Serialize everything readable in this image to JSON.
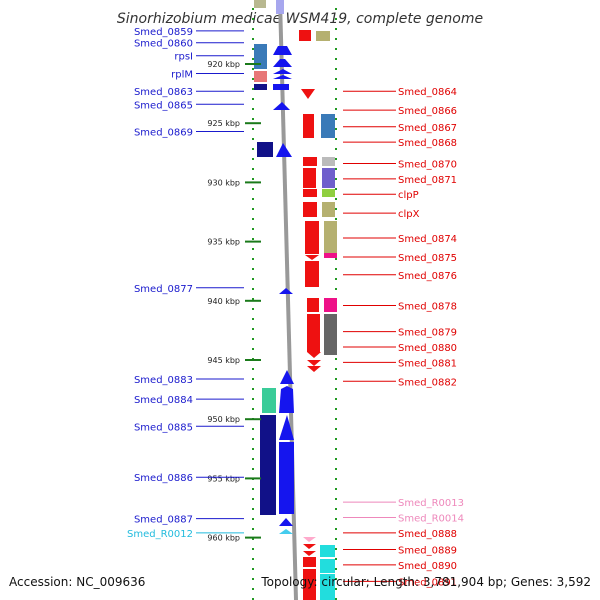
{
  "title": "Sinorhizobium medicae WSM419, complete genome",
  "footer": {
    "accession": "Accession: NC_009636",
    "summary": "Topology: circular; Length: 3,781,904 bp; Genes: 3,592"
  },
  "scale": {
    "unit": "kbp",
    "range_kbp": [
      916,
      965
    ],
    "ticks_kbp": [
      920,
      925,
      930,
      935,
      940,
      945,
      950,
      955,
      960
    ]
  },
  "colors": {
    "backbone": "#999999",
    "left_label": "#1a1acd",
    "right_label": "#e00000",
    "rna_label_cyan": "#22bbdd",
    "rna_label_pink": "#ee88bb",
    "dots": "#229922",
    "ticks": "#1a7a1a"
  },
  "left_genes": [
    {
      "label": "Smed_0859",
      "kbp": 917.2,
      "color": "#1a1acd"
    },
    {
      "label": "Smed_0860",
      "kbp": 918.2,
      "color": "#1a1acd"
    },
    {
      "label": "rpsI",
      "kbp": 919.3,
      "color": "#1a1acd"
    },
    {
      "label": "rplM",
      "kbp": 920.8,
      "color": "#1a1acd"
    },
    {
      "label": "Smed_0863",
      "kbp": 922.3,
      "color": "#1a1acd"
    },
    {
      "label": "Smed_0865",
      "kbp": 923.4,
      "color": "#1a1acd"
    },
    {
      "label": "Smed_0869",
      "kbp": 925.7,
      "color": "#1a1acd"
    },
    {
      "label": "Smed_0877",
      "kbp": 938.9,
      "color": "#1a1acd"
    },
    {
      "label": "Smed_0883",
      "kbp": 946.6,
      "color": "#1a1acd"
    },
    {
      "label": "Smed_0884",
      "kbp": 948.3,
      "color": "#1a1acd"
    },
    {
      "label": "Smed_0885",
      "kbp": 950.6,
      "color": "#1a1acd"
    },
    {
      "label": "Smed_0886",
      "kbp": 954.9,
      "color": "#1a1acd"
    },
    {
      "label": "Smed_0887",
      "kbp": 958.4,
      "color": "#1a1acd"
    },
    {
      "label": "Smed_R0012",
      "kbp": 959.6,
      "color": "#22bbdd"
    }
  ],
  "right_genes": [
    {
      "label": "Smed_0864",
      "kbp": 922.3,
      "color": "#e00000"
    },
    {
      "label": "Smed_0866",
      "kbp": 923.9,
      "color": "#e00000"
    },
    {
      "label": "Smed_0867",
      "kbp": 925.3,
      "color": "#e00000"
    },
    {
      "label": "Smed_0868",
      "kbp": 926.6,
      "color": "#e00000"
    },
    {
      "label": "Smed_0870",
      "kbp": 928.4,
      "color": "#e00000"
    },
    {
      "label": "Smed_0871",
      "kbp": 929.7,
      "color": "#e00000"
    },
    {
      "label": "clpP",
      "kbp": 931.0,
      "color": "#e00000"
    },
    {
      "label": "clpX",
      "kbp": 932.6,
      "color": "#e00000"
    },
    {
      "label": "Smed_0874",
      "kbp": 934.7,
      "color": "#e00000"
    },
    {
      "label": "Smed_0875",
      "kbp": 936.3,
      "color": "#e00000"
    },
    {
      "label": "Smed_0876",
      "kbp": 937.8,
      "color": "#e00000"
    },
    {
      "label": "Smed_0878",
      "kbp": 940.4,
      "color": "#e00000"
    },
    {
      "label": "Smed_0879",
      "kbp": 942.6,
      "color": "#e00000"
    },
    {
      "label": "Smed_0880",
      "kbp": 943.9,
      "color": "#e00000"
    },
    {
      "label": "Smed_0881",
      "kbp": 945.2,
      "color": "#e00000"
    },
    {
      "label": "Smed_0882",
      "kbp": 946.8,
      "color": "#e00000"
    },
    {
      "label": "Smed_R0013",
      "kbp": 957.0,
      "color": "#ee88bb"
    },
    {
      "label": "Smed_R0014",
      "kbp": 958.3,
      "color": "#ee88bb"
    },
    {
      "label": "Smed_0888",
      "kbp": 959.6,
      "color": "#e00000"
    },
    {
      "label": "Smed_0889",
      "kbp": 961.0,
      "color": "#e00000"
    },
    {
      "label": "Smed_0890",
      "kbp": 962.3,
      "color": "#e00000"
    },
    {
      "label": "Smed_0891",
      "kbp": 963.7,
      "color": "#e00000"
    }
  ]
}
